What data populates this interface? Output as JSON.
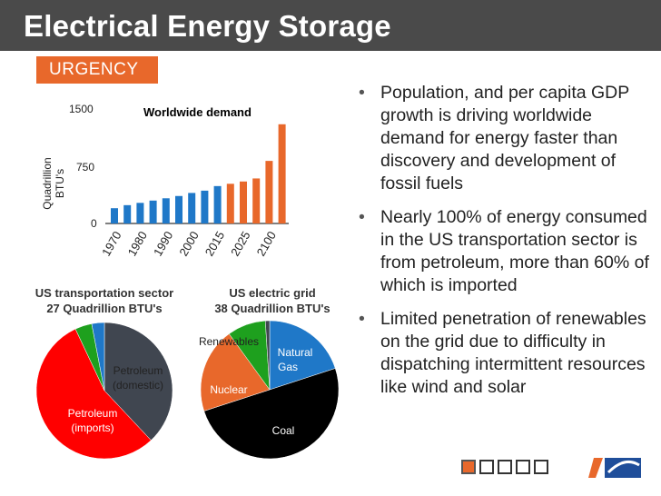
{
  "slide": {
    "title": "Electrical Energy Storage",
    "tag": "URGENCY"
  },
  "chart_data": [
    {
      "type": "bar",
      "title": "Worldwide demand",
      "ylabel": "Quadrillion BTU's",
      "ylim": [
        0,
        1500
      ],
      "yticks": [
        "1500",
        "750",
        "0"
      ],
      "xticklabels": [
        "1970",
        "1980",
        "1990",
        "2000",
        "2015",
        "2025",
        "2100"
      ],
      "values": [
        200,
        240,
        270,
        300,
        330,
        360,
        400,
        430,
        490,
        520,
        550,
        590,
        820,
        1300
      ],
      "colors": [
        "#1f78c8",
        "#1f78c8",
        "#1f78c8",
        "#1f78c8",
        "#1f78c8",
        "#1f78c8",
        "#1f78c8",
        "#1f78c8",
        "#1f78c8",
        "#e8682b",
        "#e8682b",
        "#e8682b",
        "#e8682b",
        "#e8682b"
      ],
      "grid": false
    },
    {
      "type": "pie",
      "title": "US transportation sector",
      "subtitle": "27 Quadrillion BTU's",
      "slices": [
        {
          "label": "Petroleum (domestic)",
          "value": 38,
          "color": "#404650"
        },
        {
          "label": "Petroleum (imports)",
          "value": 55,
          "color": "#ff0000"
        },
        {
          "label": "",
          "value": 4,
          "color": "#1ea01e"
        },
        {
          "label": "",
          "value": 3,
          "color": "#1f78c8"
        }
      ]
    },
    {
      "type": "pie",
      "title": "US electric grid",
      "subtitle": "38 Quadrillion BTU's",
      "slices": [
        {
          "label": "Natural Gas",
          "value": 20,
          "color": "#1f78c8"
        },
        {
          "label": "Coal",
          "value": 50,
          "color": "#000000"
        },
        {
          "label": "Nuclear",
          "value": 20,
          "color": "#e8682b"
        },
        {
          "label": "Renewables",
          "value": 9,
          "color": "#1ea01e"
        },
        {
          "label": "",
          "value": 1,
          "color": "#404650"
        }
      ]
    }
  ],
  "pies": {
    "transport": {
      "title": "US transportation sector",
      "subtitle": "27 Quadrillion BTU's",
      "label_domestic_1": "Petroleum",
      "label_domestic_2": "(domestic)",
      "label_imports_1": "Petroleum",
      "label_imports_2": "(imports)"
    },
    "grid": {
      "title": "US electric grid",
      "subtitle": "38 Quadrillion BTU's",
      "label_renewables": "Renewables",
      "label_gas_1": "Natural",
      "label_gas_2": "Gas",
      "label_nuclear": "Nuclear",
      "label_coal": "Coal"
    }
  },
  "bar_chart": {
    "title": "Worldwide demand",
    "ylabel_1": "Quadrillion",
    "ylabel_2": "BTU's",
    "ytick_top": "1500",
    "ytick_mid": "750",
    "ytick_zero": "0"
  },
  "bullets": [
    "Population, and per capita GDP growth is driving worldwide demand for energy faster than discovery and development of fossil fuels",
    "Nearly 100% of energy consumed in the US transportation sector is from petroleum, more than 60% of which is imported",
    "Limited penetration of renewables on the grid due to difficulty in dispatching intermittent resources like wind and solar"
  ],
  "bullet_glyph": "•",
  "colors": {
    "accent": "#e8682b",
    "blue": "#1f78c8",
    "header": "#4a4a4a"
  }
}
